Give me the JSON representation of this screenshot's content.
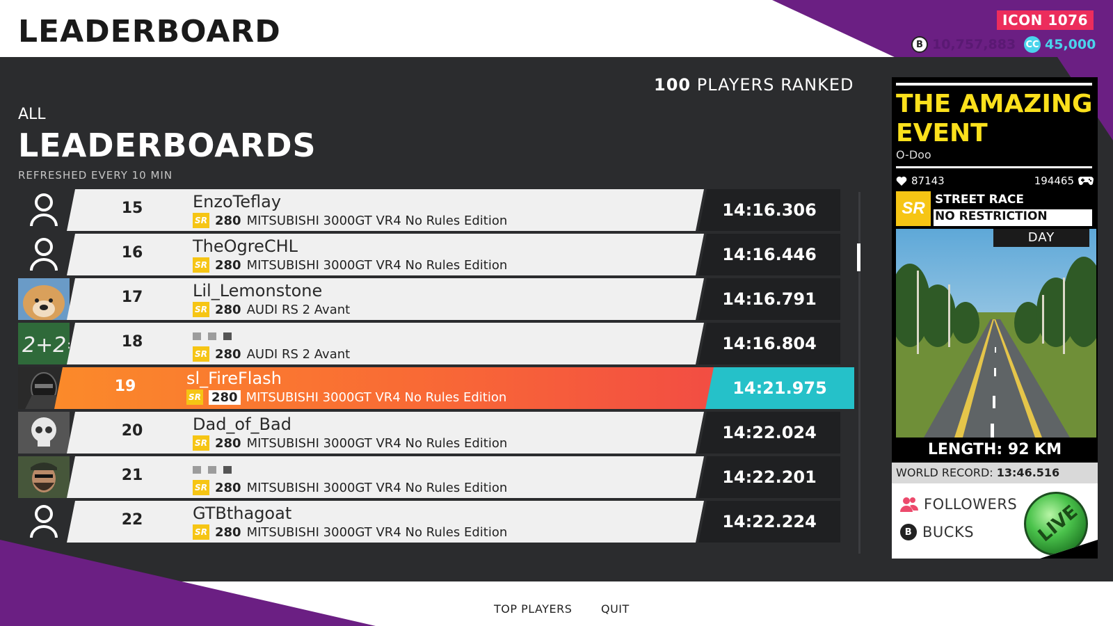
{
  "header": {
    "title": "LEADERBOARD",
    "icon_badge": "ICON 1076",
    "bucks": "10,757,883",
    "crew_credits": "45,000"
  },
  "leaderboard": {
    "players_ranked_count": "100",
    "players_ranked_label": "PLAYERS RANKED",
    "scope": "ALL",
    "title": "LEADERBOARDS",
    "refresh_note": "REFRESHED EVERY 10 MIN",
    "rows": [
      {
        "rank": "15",
        "name": "EnzoTeflay",
        "hidden": false,
        "badge": "SR",
        "level": "280",
        "car": "MITSUBISHI 3000GT VR4 No Rules Edition",
        "time": "14:16.306",
        "avatar": "placeholder"
      },
      {
        "rank": "16",
        "name": "TheOgreCHL",
        "hidden": false,
        "badge": "SR",
        "level": "280",
        "car": "MITSUBISHI 3000GT VR4 No Rules Edition",
        "time": "14:16.446",
        "avatar": "placeholder"
      },
      {
        "rank": "17",
        "name": "Lil_Lemonstone",
        "hidden": false,
        "badge": "SR",
        "level": "280",
        "car": "AUDI RS 2 Avant",
        "time": "14:16.791",
        "avatar": "dog"
      },
      {
        "rank": "18",
        "name": "",
        "hidden": true,
        "badge": "SR",
        "level": "280",
        "car": "AUDI RS 2 Avant",
        "time": "14:16.804",
        "avatar": "chalkboard"
      },
      {
        "rank": "19",
        "name": "sl_FireFlash",
        "hidden": false,
        "badge": "SR",
        "level": "280",
        "car": "MITSUBISHI 3000GT VR4 No Rules Edition",
        "time": "14:21.975",
        "avatar": "masked",
        "current_player": true
      },
      {
        "rank": "20",
        "name": "Dad_of_Bad",
        "hidden": false,
        "badge": "SR",
        "level": "280",
        "car": "MITSUBISHI 3000GT VR4 No Rules Edition",
        "time": "14:22.024",
        "avatar": "skull"
      },
      {
        "rank": "21",
        "name": "",
        "hidden": true,
        "badge": "SR",
        "level": "280",
        "car": "MITSUBISHI 3000GT VR4 No Rules Edition",
        "time": "14:22.201",
        "avatar": "bearded"
      },
      {
        "rank": "22",
        "name": "GTBthagoat",
        "hidden": false,
        "badge": "SR",
        "level": "280",
        "car": "MITSUBISHI 3000GT VR4 No Rules Edition",
        "time": "14:22.224",
        "avatar": "placeholder"
      }
    ]
  },
  "event": {
    "title": "THE AMAZING EVENT",
    "author": "O-Doo",
    "likes": "87143",
    "plays": "194465",
    "badge": "SR",
    "race_type": "STREET RACE",
    "restriction": "NO RESTRICTION",
    "time_of_day": "DAY",
    "length": "LENGTH: 92 KM",
    "world_record_label": "WORLD RECORD:",
    "world_record": "13:46.516",
    "followers_label": "FOLLOWERS",
    "bucks_label": "BUCKS",
    "live_label": "LIVE"
  },
  "footer": {
    "top_players": "TOP PLAYERS",
    "quit": "QUIT"
  },
  "colors": {
    "accent_purple": "#6b1f83",
    "icon_pink": "#ec2d5c",
    "highlight_orange": "#f96a35",
    "highlight_teal": "#25c1c9",
    "event_yellow": "#fbe01c",
    "sr_yellow": "#f6c514"
  }
}
